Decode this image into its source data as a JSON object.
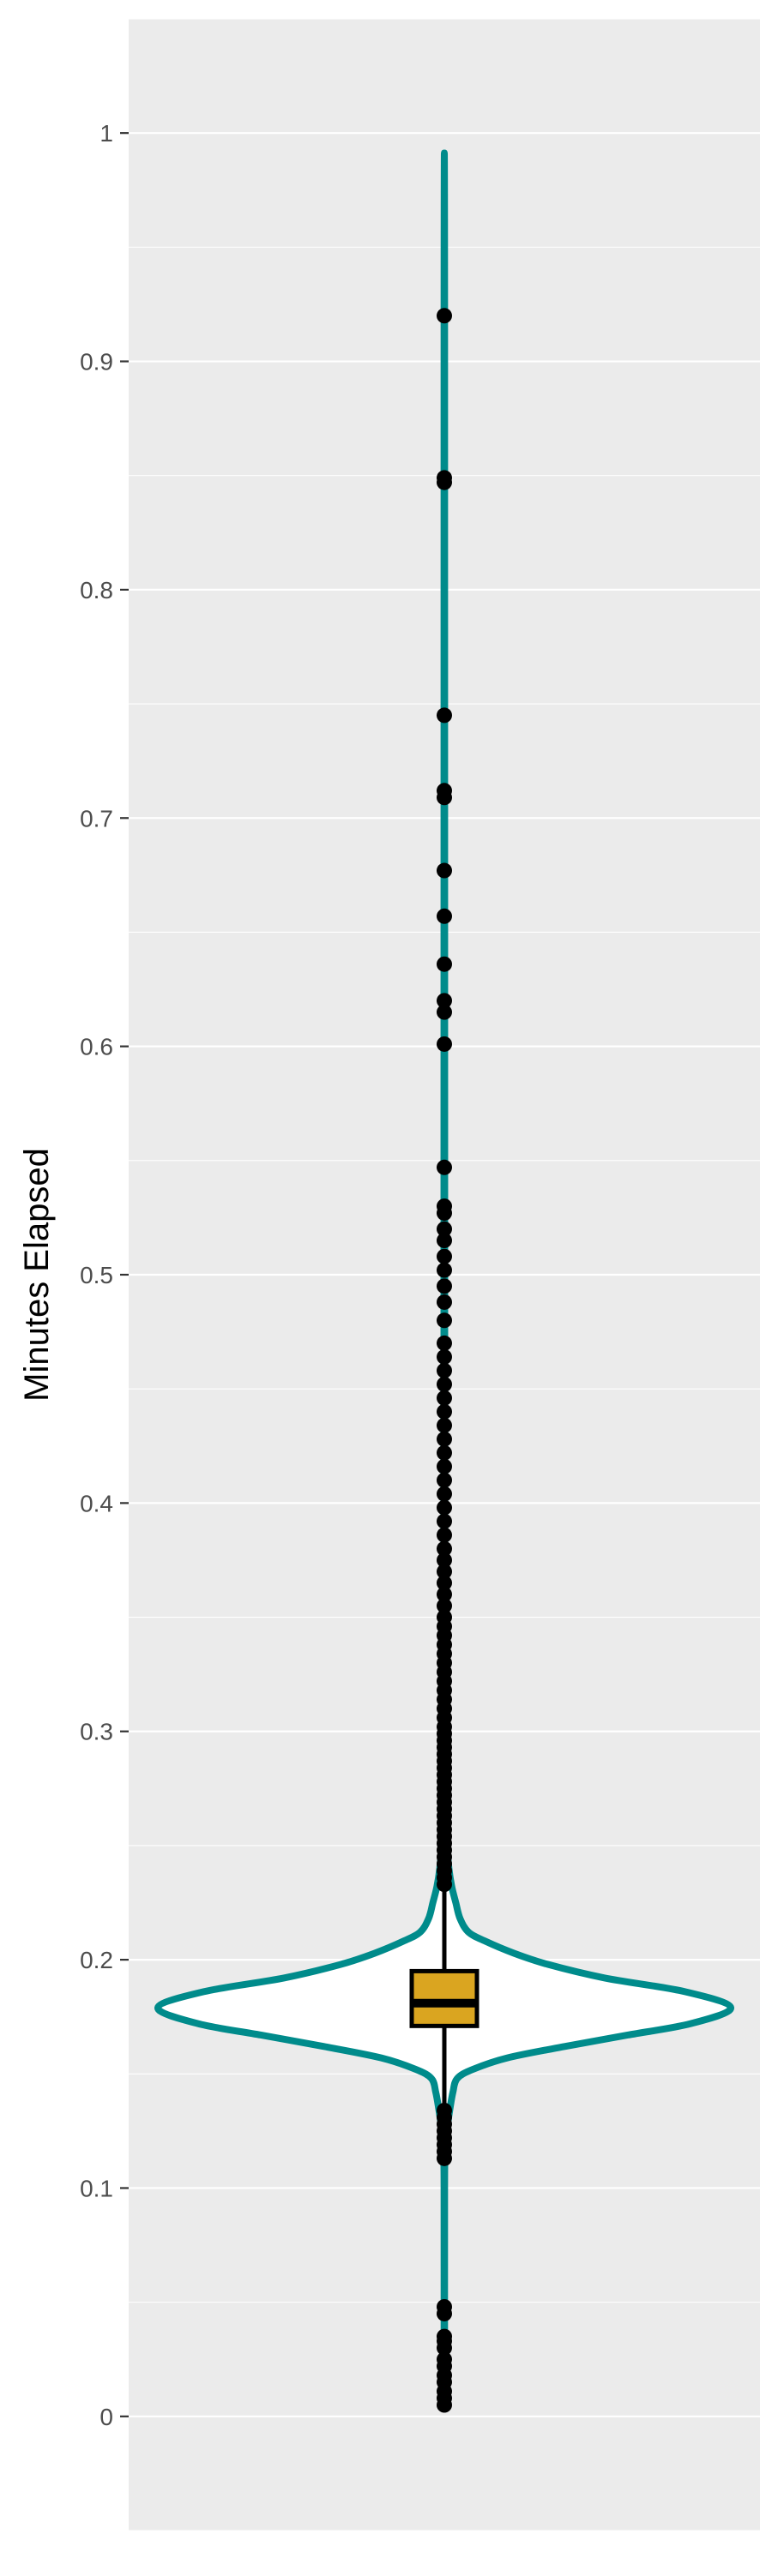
{
  "chart_data": {
    "type": "violin",
    "title": "",
    "xlabel": "",
    "ylabel": "Minutes Elapsed",
    "ylim": [
      -0.05,
      1.05
    ],
    "yticks": [
      0,
      0.1,
      0.2,
      0.3,
      0.4,
      0.5,
      0.6,
      0.7,
      0.8,
      0.9,
      1
    ],
    "ytick_labels": [
      "0",
      "0.1",
      "0.2",
      "0.3",
      "0.4",
      "0.5",
      "0.6",
      "0.7",
      "0.8",
      "0.9",
      "1"
    ],
    "grid": true,
    "colors": {
      "panel": "#ebebeb",
      "grid": "#ffffff",
      "violin_outline": "#008b8b",
      "violin_fill": "#ffffff",
      "box_fill": "#daa520",
      "box_outline": "#000000",
      "outlier": "#000000",
      "tick": "#333333",
      "tick_label": "#4d4d4d"
    },
    "violin": {
      "min": 0.005,
      "max": 0.92,
      "density": [
        [
          0.005,
          0.001
        ],
        [
          0.1,
          0.001
        ],
        [
          0.112,
          0.003
        ],
        [
          0.12,
          0.006
        ],
        [
          0.128,
          0.012
        ],
        [
          0.135,
          0.02
        ],
        [
          0.142,
          0.03
        ],
        [
          0.148,
          0.045
        ],
        [
          0.152,
          0.1
        ],
        [
          0.157,
          0.22
        ],
        [
          0.162,
          0.42
        ],
        [
          0.167,
          0.64
        ],
        [
          0.172,
          0.86
        ],
        [
          0.179,
          1.0
        ],
        [
          0.186,
          0.84
        ],
        [
          0.192,
          0.56
        ],
        [
          0.198,
          0.36
        ],
        [
          0.203,
          0.24
        ],
        [
          0.208,
          0.145
        ],
        [
          0.212,
          0.085
        ],
        [
          0.218,
          0.055
        ],
        [
          0.225,
          0.04
        ],
        [
          0.232,
          0.026
        ],
        [
          0.24,
          0.016
        ],
        [
          0.25,
          0.01
        ],
        [
          0.262,
          0.006
        ],
        [
          0.28,
          0.004
        ],
        [
          0.3,
          0.003
        ],
        [
          0.35,
          0.0015
        ],
        [
          0.92,
          0.001
        ]
      ]
    },
    "box": {
      "q1": 0.171,
      "median": 0.181,
      "q3": 0.195,
      "whisker_low": 0.113,
      "whisker_high": 0.232
    },
    "outliers": [
      0.005,
      0.008,
      0.011,
      0.015,
      0.018,
      0.022,
      0.025,
      0.03,
      0.033,
      0.035,
      0.045,
      0.048,
      0.113,
      0.116,
      0.119,
      0.122,
      0.125,
      0.128,
      0.131,
      0.134,
      0.233,
      0.236,
      0.239,
      0.242,
      0.245,
      0.248,
      0.251,
      0.254,
      0.257,
      0.26,
      0.263,
      0.266,
      0.269,
      0.272,
      0.275,
      0.278,
      0.281,
      0.284,
      0.287,
      0.29,
      0.293,
      0.296,
      0.299,
      0.302,
      0.306,
      0.31,
      0.314,
      0.318,
      0.322,
      0.326,
      0.33,
      0.334,
      0.338,
      0.342,
      0.346,
      0.35,
      0.355,
      0.36,
      0.365,
      0.37,
      0.375,
      0.38,
      0.386,
      0.392,
      0.398,
      0.404,
      0.41,
      0.416,
      0.422,
      0.428,
      0.434,
      0.44,
      0.446,
      0.452,
      0.458,
      0.464,
      0.47,
      0.48,
      0.488,
      0.495,
      0.502,
      0.508,
      0.515,
      0.52,
      0.527,
      0.53,
      0.547,
      0.601,
      0.615,
      0.62,
      0.636,
      0.657,
      0.677,
      0.709,
      0.712,
      0.745,
      0.847,
      0.849,
      0.92
    ]
  }
}
